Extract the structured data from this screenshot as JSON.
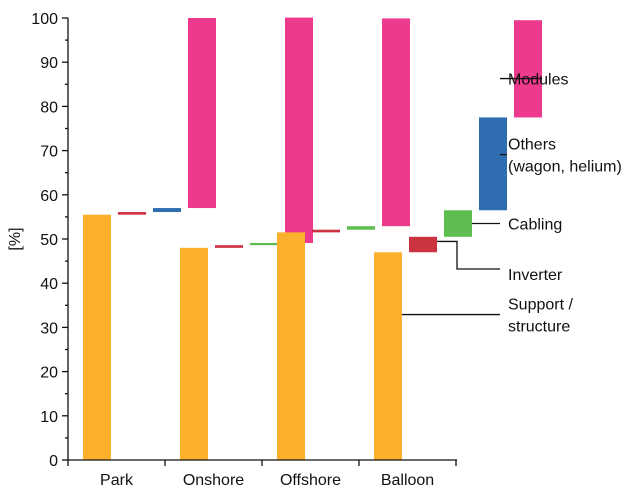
{
  "chart_data": {
    "type": "bar",
    "subtype": "waterfall",
    "ylabel": "[%]",
    "ylim": [
      0,
      100
    ],
    "yticks": [
      0,
      10,
      20,
      30,
      40,
      50,
      60,
      70,
      80,
      90,
      100
    ],
    "categories": [
      "Park",
      "Onshore",
      "Offshore",
      "Balloon"
    ],
    "colors": {
      "Support / structure": "#FBB12B",
      "Inverter": "#CC3340",
      "Cabling": "#5DBE4F",
      "Others (wagon, helium)": "#2F6DB1",
      "Modules": "#EE3A8C"
    },
    "series": [
      {
        "name": "Support / structure",
        "values": [
          55.5,
          48.0,
          51.5,
          47.0
        ]
      },
      {
        "name": "Inverter",
        "values": [
          0.6,
          0.6,
          0.6,
          3.5
        ]
      },
      {
        "name": "Cabling",
        "values": [
          0.0,
          0.5,
          0.8,
          6.0
        ]
      },
      {
        "name": "Others (wagon, helium)",
        "values": [
          0.9,
          0.0,
          0.0,
          21.0
        ]
      },
      {
        "name": "Modules",
        "values": [
          43.0,
          51.0,
          47.0,
          22.0
        ]
      }
    ],
    "annotations": [
      {
        "series": "Modules",
        "lines": [
          "Modules"
        ]
      },
      {
        "series": "Others (wagon, helium)",
        "lines": [
          "Others",
          "(wagon, helium)"
        ]
      },
      {
        "series": "Cabling",
        "lines": [
          "Cabling"
        ]
      },
      {
        "series": "Inverter",
        "lines": [
          "Inverter"
        ]
      },
      {
        "series": "Support / structure",
        "lines": [
          "Support /",
          "structure"
        ]
      }
    ],
    "grid": false,
    "legend": "right-annotations"
  }
}
